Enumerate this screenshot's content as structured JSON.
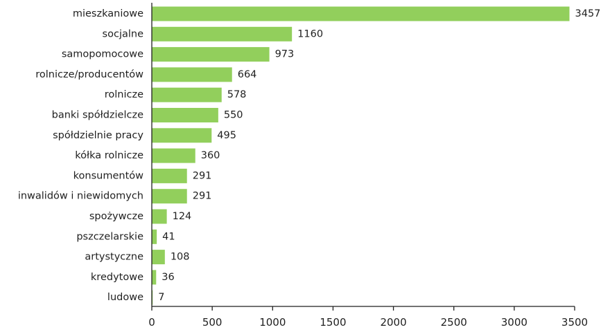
{
  "chart_data": {
    "type": "bar",
    "orientation": "horizontal",
    "categories": [
      "mieszkaniowe",
      "socjalne",
      "samopomocowe",
      "rolnicze/producentów",
      "rolnicze",
      "banki spółdzielcze",
      "spółdzielnie pracy",
      "kółka rolnicze",
      "konsumentów",
      "inwalidów i niewidomych",
      "spożywcze",
      "pszczelarskie",
      "artystyczne",
      "kredytowe",
      "ludowe"
    ],
    "values": [
      3457,
      1160,
      973,
      664,
      578,
      550,
      495,
      360,
      291,
      291,
      124,
      41,
      108,
      36,
      7
    ],
    "value_labels": [
      "3457",
      "1160",
      "973",
      "664",
      "578",
      "550",
      "495",
      "360",
      "291",
      "291",
      "124",
      "41",
      "108",
      "36",
      "7"
    ],
    "xlim": [
      0,
      3500
    ],
    "xticks": [
      0,
      500,
      1000,
      1500,
      2000,
      2500,
      3000,
      3500
    ],
    "title": "",
    "xlabel": "",
    "ylabel": "",
    "grid": false,
    "legend": "none",
    "colors": {
      "bar": "#92cf5c",
      "text": "#1f1f1f",
      "axis": "#1f1f1f"
    }
  }
}
